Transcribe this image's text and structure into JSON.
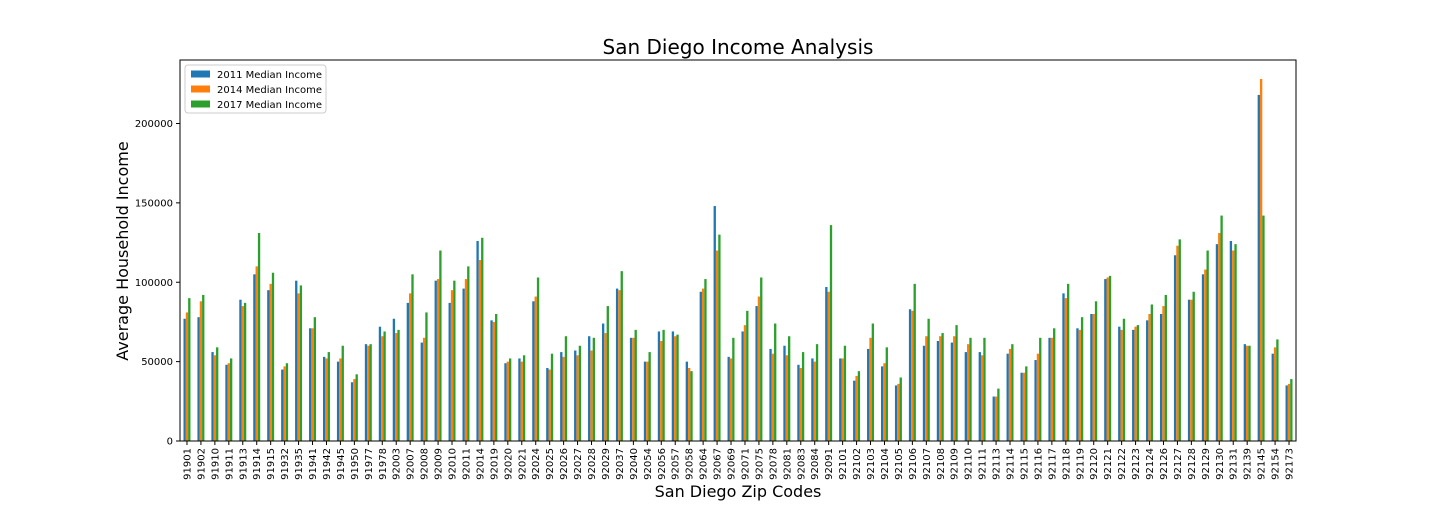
{
  "chart_data": {
    "type": "bar",
    "title": "San Diego Income Analysis",
    "xlabel": "San Diego Zip Codes",
    "ylabel": "Average Household Income",
    "ylim": [
      0,
      240000
    ],
    "yticks": [
      0,
      50000,
      100000,
      150000,
      200000
    ],
    "yticklabels": [
      "0",
      "50000",
      "100000",
      "150000",
      "200000"
    ],
    "grid": false,
    "legend_position": "top-left",
    "categories": [
      "91901",
      "91902",
      "91910",
      "91911",
      "91913",
      "91914",
      "91915",
      "91932",
      "91935",
      "91941",
      "91942",
      "91945",
      "91950",
      "91977",
      "91978",
      "92003",
      "92007",
      "92008",
      "92009",
      "92010",
      "92011",
      "92014",
      "92019",
      "92020",
      "92021",
      "92024",
      "92025",
      "92026",
      "92027",
      "92028",
      "92029",
      "92037",
      "92040",
      "92054",
      "92056",
      "92057",
      "92058",
      "92064",
      "92067",
      "92069",
      "92071",
      "92075",
      "92078",
      "92081",
      "92083",
      "92084",
      "92091",
      "92101",
      "92102",
      "92103",
      "92104",
      "92105",
      "92106",
      "92107",
      "92108",
      "92109",
      "92110",
      "92111",
      "92113",
      "92114",
      "92115",
      "92116",
      "92117",
      "92118",
      "92119",
      "92120",
      "92121",
      "92122",
      "92123",
      "92124",
      "92126",
      "92127",
      "92128",
      "92129",
      "92130",
      "92131",
      "92139",
      "92145",
      "92154",
      "92173"
    ],
    "series": [
      {
        "name": "2011 Median Income",
        "color": "#1f77b4",
        "values": [
          77000,
          78000,
          56000,
          48000,
          89000,
          105000,
          95000,
          45000,
          101000,
          71000,
          53000,
          50000,
          37000,
          61000,
          72000,
          77000,
          87000,
          62000,
          101000,
          87000,
          96000,
          126000,
          76000,
          49000,
          52000,
          88000,
          46000,
          56000,
          57000,
          66000,
          74000,
          96000,
          65000,
          50000,
          69000,
          69000,
          50000,
          94000,
          148000,
          53000,
          69000,
          85000,
          58000,
          60000,
          48000,
          52000,
          97000,
          52000,
          38000,
          58000,
          47000,
          35000,
          83000,
          60000,
          63000,
          62000,
          56000,
          56000,
          28000,
          55000,
          43000,
          51000,
          65000,
          93000,
          71000,
          80000,
          102000,
          72000,
          70000,
          76000,
          80000,
          117000,
          89000,
          105000,
          124000,
          126000,
          61000,
          218000,
          55000,
          35000
        ]
      },
      {
        "name": "2014 Median Income",
        "color": "#ff7f0e",
        "values": [
          81000,
          88000,
          54000,
          49000,
          85000,
          110000,
          99000,
          47000,
          93000,
          71000,
          52000,
          52000,
          39000,
          60000,
          66000,
          68000,
          93000,
          65000,
          102000,
          95000,
          102000,
          114000,
          75000,
          50000,
          50000,
          91000,
          45000,
          53000,
          54000,
          57000,
          68000,
          95000,
          65000,
          50000,
          63000,
          66000,
          46000,
          96000,
          120000,
          52000,
          73000,
          91000,
          55000,
          54000,
          46000,
          50000,
          94000,
          52000,
          41000,
          65000,
          49000,
          36000,
          82000,
          66000,
          66000,
          66000,
          61000,
          54000,
          28000,
          58000,
          43000,
          55000,
          65000,
          90000,
          70000,
          80000,
          103000,
          70000,
          72000,
          80000,
          85000,
          123000,
          89000,
          108000,
          131000,
          120000,
          60000,
          228000,
          59000,
          36000
        ]
      },
      {
        "name": "2017 Median Income",
        "color": "#2ca02c",
        "values": [
          90000,
          92000,
          59000,
          52000,
          87000,
          131000,
          106000,
          49000,
          98000,
          78000,
          56000,
          60000,
          42000,
          61000,
          69000,
          70000,
          105000,
          81000,
          120000,
          101000,
          110000,
          128000,
          80000,
          52000,
          54000,
          103000,
          55000,
          66000,
          60000,
          65000,
          85000,
          107000,
          70000,
          56000,
          70000,
          67000,
          44000,
          102000,
          130000,
          65000,
          82000,
          103000,
          74000,
          66000,
          56000,
          61000,
          136000,
          60000,
          44000,
          74000,
          59000,
          40000,
          99000,
          77000,
          68000,
          73000,
          65000,
          65000,
          33000,
          61000,
          47000,
          65000,
          71000,
          99000,
          78000,
          88000,
          104000,
          77000,
          73000,
          86000,
          92000,
          127000,
          94000,
          120000,
          142000,
          124000,
          60000,
          142000,
          64000,
          39000
        ]
      }
    ]
  }
}
